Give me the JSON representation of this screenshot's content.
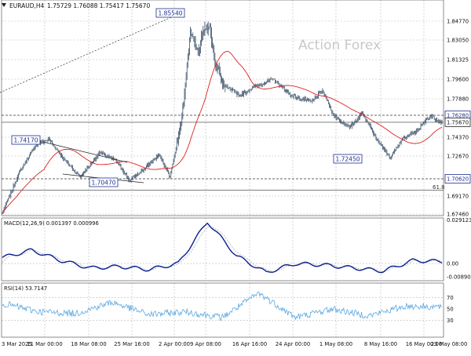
{
  "header": {
    "symbol": "EURAUD,H4",
    "ohlc": "1.75729 1.76088 1.75417 1.75670"
  },
  "watermark": "Action Forex",
  "colors": {
    "candle": "#3a5068",
    "ma": "#e02020",
    "macd": "#0a1f8f",
    "signal": "#a0a0a0",
    "rsi": "#5ba8e0",
    "grid": "#b8b8b8",
    "label_border": "#1f2f8f",
    "label_text": "#1f2f8f",
    "watermark": "#c8c8c8"
  },
  "annotations": {
    "high_label": "1.85540",
    "swing_high_label": "1.74170",
    "low_label": "1.70470",
    "recent_low_label": "1.72450",
    "fib_label": "61.8"
  },
  "price_tags": [
    {
      "label": "1.76280",
      "value": 1.7628,
      "style": "boxed"
    },
    {
      "label": "1.75670",
      "value": 1.7567,
      "style": "current"
    },
    {
      "label": "1.70620",
      "value": 1.7062,
      "style": "boxed"
    }
  ],
  "chart_data": [
    {
      "type": "candlestick",
      "title": "EURAUD,H4",
      "y_ticks": [
        "1.84770",
        "1.83050",
        "1.81325",
        "1.79600",
        "1.77880",
        "1.76280",
        "1.75670",
        "1.74370",
        "1.72670",
        "1.70620",
        "1.69170",
        "1.67460"
      ],
      "ylim": [
        1.669,
        1.865
      ],
      "x_ticks": [
        "3 Mar 2025",
        "11 Mar 00:00",
        "18 Mar 08:00",
        "25 Mar 16:00",
        "2 Apr 00:00",
        "9 Apr 08:00",
        "16 Apr 16:00",
        "24 Apr 00:00",
        "1 May 08:00",
        "8 May 16:00",
        "16 May 00:00",
        "23 May 08:00"
      ],
      "key_points": [
        {
          "label": "start",
          "value": 1.676
        },
        {
          "label": "1.74170",
          "value": 1.7417
        },
        {
          "label": "1.70470",
          "value": 1.7047
        },
        {
          "label": "1.85540",
          "value": 1.8554
        },
        {
          "label": "1.72450",
          "value": 1.7245
        },
        {
          "label": "last",
          "value": 1.7567
        }
      ],
      "horizontal_levels": [
        1.7628,
        1.7567,
        1.7062,
        1.6965
      ],
      "grid": true,
      "overlay": "moving average (red)"
    },
    {
      "type": "line",
      "title": "MACD(12,26,9) 0.001397 0.000996",
      "y_ticks": [
        "0.029123",
        "0.00",
        "-0.008901"
      ],
      "ylim": [
        -0.0115,
        0.0305
      ],
      "series": [
        {
          "name": "MACD",
          "key_points": [
            0.004,
            0.009,
            0.002,
            -0.003,
            -0.002,
            -0.004,
            0.0,
            0.028,
            0.005,
            -0.006,
            0.0,
            -0.001,
            -0.003,
            -0.005,
            0.002,
            0.0014
          ]
        },
        {
          "name": "Signal",
          "key_points": [
            0.001
          ]
        }
      ],
      "grid": true
    },
    {
      "type": "line",
      "title": "RSI(14) 53.7147",
      "y_ticks": [
        "70",
        "50",
        "30"
      ],
      "ylim": [
        0,
        100
      ],
      "series": [
        {
          "name": "RSI(14)",
          "key_points": [
            60,
            45,
            42,
            62,
            40,
            45,
            35,
            78,
            35,
            50,
            38,
            55,
            53.7
          ]
        }
      ],
      "levels": [
        70,
        30
      ],
      "grid": true
    }
  ]
}
